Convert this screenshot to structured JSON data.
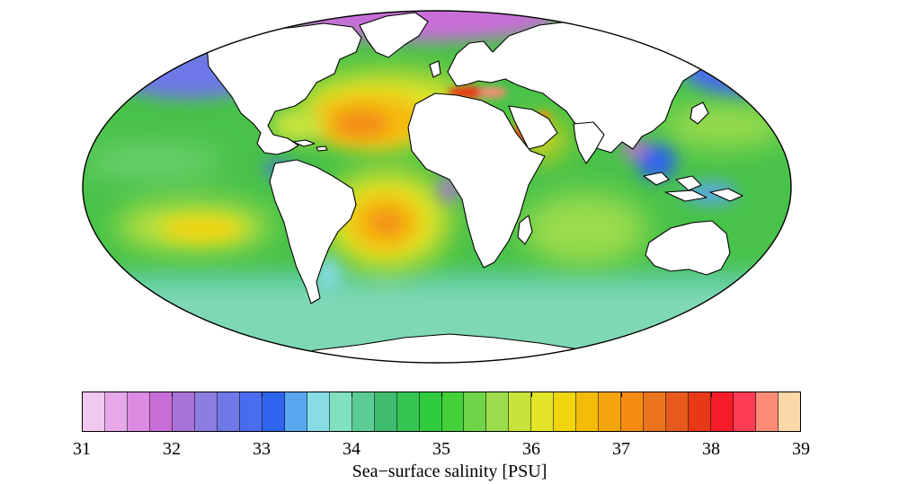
{
  "colorbar": {
    "min": 31,
    "max": 39,
    "step": 0.25,
    "ticks": [
      "31",
      "32",
      "33",
      "34",
      "35",
      "36",
      "37",
      "38",
      "39"
    ],
    "label": "Sea−surface salinity [PSU]",
    "colors": [
      "#f0c8f0",
      "#e6a8e8",
      "#dc8ce0",
      "#c86ed8",
      "#a872d8",
      "#8c7ee0",
      "#6e78e6",
      "#4a6cee",
      "#2e64ee",
      "#5aa6ee",
      "#88dce6",
      "#80e0c0",
      "#5ccc96",
      "#40bc6e",
      "#34c450",
      "#30cc40",
      "#44d038",
      "#70d448",
      "#9cdc4c",
      "#c8e43c",
      "#e4e428",
      "#f0d40c",
      "#f4bc08",
      "#f4a40c",
      "#f48c14",
      "#ec741c",
      "#e85a1c",
      "#e83818",
      "#f41c28",
      "#fc3c54",
      "#fc8c78",
      "#fcd8a8"
    ]
  }
}
